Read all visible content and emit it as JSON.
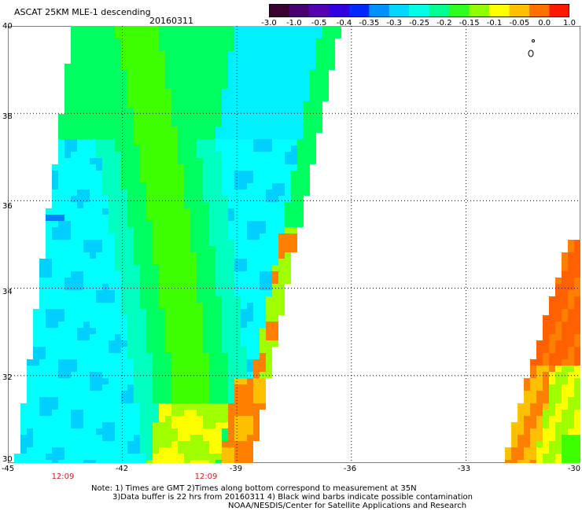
{
  "header": {
    "title": "ASCAT 25KM MLE-1 descending",
    "date": "20160311"
  },
  "colorbar": {
    "colors": [
      "#3a0030",
      "#4a006e",
      "#5500b0",
      "#3000e0",
      "#0028ff",
      "#0090ff",
      "#00d8ff",
      "#00ffe8",
      "#00ff90",
      "#30ff20",
      "#90ff00",
      "#ffff00",
      "#ffc000",
      "#ff7000",
      "#ff1800"
    ],
    "ticks": [
      "-3.0",
      "-1.0",
      "-0.5",
      "-0.4",
      "-0.35",
      "-0.3",
      "-0.25",
      "-0.2",
      "-0.15",
      "-0.1",
      "-0.05",
      "0.0",
      "1.0"
    ]
  },
  "map": {
    "lat_labels": [
      "40",
      "38",
      "36",
      "34",
      "32",
      "30"
    ],
    "lon_labels": [
      "-45",
      "-42",
      "-39",
      "-36",
      "-33",
      "-30"
    ],
    "time_labels": [
      "12:09",
      "12:09"
    ],
    "lat_range": [
      30,
      40
    ],
    "lon_range": [
      -45,
      -30
    ],
    "colors": {
      "cyan": "#00ffff",
      "light_cyan": "#00f0ff",
      "sky": "#00d0ff",
      "blue": "#0080ff",
      "aqua_green": "#00ffc0",
      "green": "#00ff60",
      "lime": "#40ff00",
      "yellow_green": "#a0ff00",
      "yellow": "#ffff00",
      "orange_yellow": "#ffc000",
      "orange": "#ff8000",
      "dark_orange": "#ff6000"
    }
  },
  "notes": {
    "line1": "Note: 1) Times are GMT 2)Times along bottom correspond to measurement at 35N",
    "line2": "3)Data buffer is 22 hrs from 20160311 4) Black wind barbs indicate possible contamination",
    "line3": "NOAA/NESDIS/Center for Satellite Applications and Research"
  }
}
